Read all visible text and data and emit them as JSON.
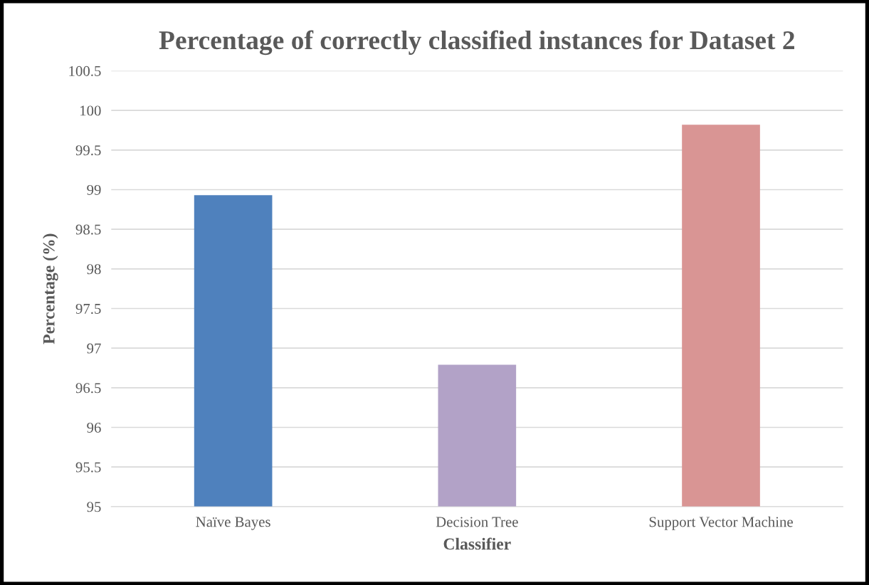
{
  "chart_data": {
    "type": "bar",
    "title": "Percentage of correctly classified instances for Dataset 2",
    "xlabel": "Classifier",
    "ylabel": "Percentage (%)",
    "categories": [
      "Naïve Bayes",
      "Decision Tree",
      "Support Vector Machine"
    ],
    "values": [
      98.93,
      96.79,
      99.82
    ],
    "colors": [
      "#4f81bd",
      "#b2a2c7",
      "#d99594"
    ],
    "ylim": [
      95,
      100.5
    ],
    "yticks": [
      95,
      95.5,
      96,
      96.5,
      97,
      97.5,
      98,
      98.5,
      99,
      99.5,
      100,
      100.5
    ],
    "grid": "y",
    "legend": false
  }
}
